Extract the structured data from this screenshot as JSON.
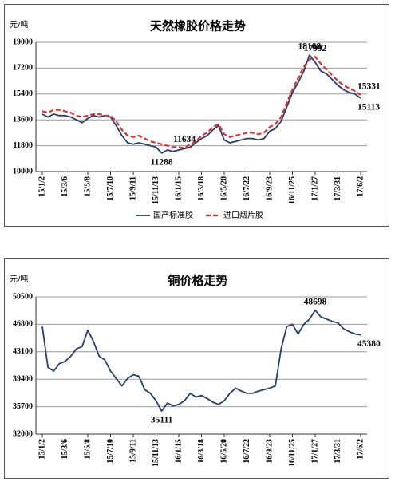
{
  "chart_data": [
    {
      "type": "line",
      "title": "天然橡胶价格走势",
      "y_label": "元/吨",
      "categories": [
        "15/1/2",
        null,
        null,
        null,
        "15/3/6",
        null,
        null,
        null,
        "15/5/8",
        null,
        null,
        null,
        "15/7/10",
        null,
        null,
        null,
        "15/9/11",
        null,
        null,
        null,
        "15/11/13",
        null,
        null,
        null,
        "16/1/15",
        null,
        null,
        null,
        "16/3/18",
        null,
        null,
        null,
        "16/5/20",
        null,
        null,
        null,
        "16/7/22",
        null,
        null,
        null,
        "16/9/23",
        null,
        null,
        null,
        "16/11/25",
        null,
        null,
        null,
        "17/1/27",
        null,
        null,
        null,
        "17/3/31",
        null,
        null,
        null,
        "17/6/2"
      ],
      "series": [
        {
          "name": "国产标准胶",
          "color": "#243f73",
          "dash": false,
          "values": [
            14000,
            13800,
            14000,
            13900,
            13900,
            13800,
            13600,
            13400,
            13700,
            13900,
            13800,
            13900,
            13800,
            13200,
            12500,
            12000,
            11900,
            12000,
            11900,
            11800,
            11700,
            11288,
            11500,
            11400,
            11500,
            11600,
            11700,
            12000,
            12300,
            12500,
            12900,
            13200,
            12200,
            12000,
            12100,
            12200,
            12300,
            12300,
            12200,
            12300,
            12800,
            13000,
            13500,
            14500,
            15500,
            16200,
            17000,
            18108,
            17600,
            17000,
            16800,
            16400,
            16000,
            15700,
            15500,
            15400,
            15113
          ],
          "value_labels": [
            null,
            null,
            null,
            null,
            null,
            null,
            null,
            null,
            null,
            null,
            null,
            null,
            null,
            null,
            null,
            null,
            null,
            null,
            null,
            null,
            null,
            "11288",
            null,
            null,
            null,
            null,
            null,
            null,
            null,
            null,
            null,
            null,
            null,
            null,
            null,
            null,
            null,
            null,
            null,
            null,
            null,
            null,
            null,
            null,
            null,
            null,
            null,
            "18108",
            null,
            null,
            null,
            null,
            null,
            null,
            null,
            null,
            "15113"
          ]
        },
        {
          "name": "进口烟片胶",
          "color": "#e8312a",
          "dash": true,
          "values": [
            14200,
            14100,
            14300,
            14300,
            14200,
            14100,
            13900,
            13800,
            13900,
            14000,
            14000,
            13900,
            13900,
            13500,
            12900,
            12500,
            12400,
            12500,
            12300,
            12100,
            12000,
            11900,
            11800,
            11700,
            11700,
            11634,
            11900,
            12100,
            12500,
            12700,
            13100,
            13300,
            12600,
            12400,
            12500,
            12600,
            12700,
            12700,
            12600,
            12700,
            13100,
            13300,
            13800,
            14800,
            15700,
            16500,
            17300,
            17800,
            17992,
            17500,
            17100,
            16700,
            16300,
            16000,
            15800,
            15600,
            15331
          ],
          "value_labels": [
            null,
            null,
            null,
            null,
            null,
            null,
            null,
            null,
            null,
            null,
            null,
            null,
            null,
            null,
            null,
            null,
            null,
            null,
            null,
            null,
            null,
            null,
            null,
            null,
            null,
            "11634",
            null,
            null,
            null,
            null,
            null,
            null,
            null,
            null,
            null,
            null,
            null,
            null,
            null,
            null,
            null,
            null,
            null,
            null,
            null,
            null,
            null,
            null,
            "17992",
            null,
            null,
            null,
            null,
            null,
            null,
            null,
            "15331"
          ]
        }
      ],
      "ylim": [
        10000,
        19000
      ],
      "yticks": [
        10000,
        11800,
        13600,
        15400,
        17200,
        19000
      ],
      "grid": true,
      "legend": "bottom"
    },
    {
      "type": "line",
      "title": "铜价格走势",
      "y_label": "元/吨",
      "categories": [
        "15/1/2",
        null,
        null,
        null,
        "15/3/6",
        null,
        null,
        null,
        "15/5/8",
        null,
        null,
        null,
        "15/7/10",
        null,
        null,
        null,
        "15/9/11",
        null,
        null,
        null,
        "15/11/13",
        null,
        null,
        null,
        "16/1/15",
        null,
        null,
        null,
        "16/3/18",
        null,
        null,
        null,
        "16/5/20",
        null,
        null,
        null,
        "16/7/22",
        null,
        null,
        null,
        "16/9/23",
        null,
        null,
        null,
        "16/11/25",
        null,
        null,
        null,
        "17/1/27",
        null,
        null,
        null,
        "17/3/31",
        null,
        null,
        null,
        "17/6/2"
      ],
      "series": [
        {
          "color": "#243f73",
          "dash": false,
          "values": [
            46500,
            41000,
            40500,
            41500,
            41800,
            42500,
            43500,
            43800,
            46000,
            44500,
            42500,
            42000,
            40500,
            39500,
            38500,
            39500,
            40000,
            39800,
            38000,
            37500,
            36500,
            35111,
            36200,
            35800,
            36000,
            36500,
            37500,
            37000,
            37200,
            36800,
            36300,
            36000,
            36500,
            37500,
            38200,
            37800,
            37500,
            37500,
            37800,
            38000,
            38200,
            38500,
            43500,
            46500,
            46800,
            45500,
            46800,
            47500,
            48698,
            47800,
            47500,
            47200,
            47000,
            46200,
            45800,
            45500,
            45380
          ],
          "value_labels": [
            null,
            null,
            null,
            null,
            null,
            null,
            null,
            null,
            null,
            null,
            null,
            null,
            null,
            null,
            null,
            null,
            null,
            null,
            null,
            null,
            null,
            "35111",
            null,
            null,
            null,
            null,
            null,
            null,
            null,
            null,
            null,
            null,
            null,
            null,
            null,
            null,
            null,
            null,
            null,
            null,
            null,
            null,
            null,
            null,
            null,
            null,
            null,
            null,
            "48698",
            null,
            null,
            null,
            null,
            null,
            null,
            null,
            "45380"
          ]
        }
      ],
      "ylim": [
        32000,
        50500
      ],
      "yticks": [
        32000,
        35700,
        39400,
        43100,
        46800,
        50500
      ],
      "grid": true,
      "legend": null
    }
  ]
}
